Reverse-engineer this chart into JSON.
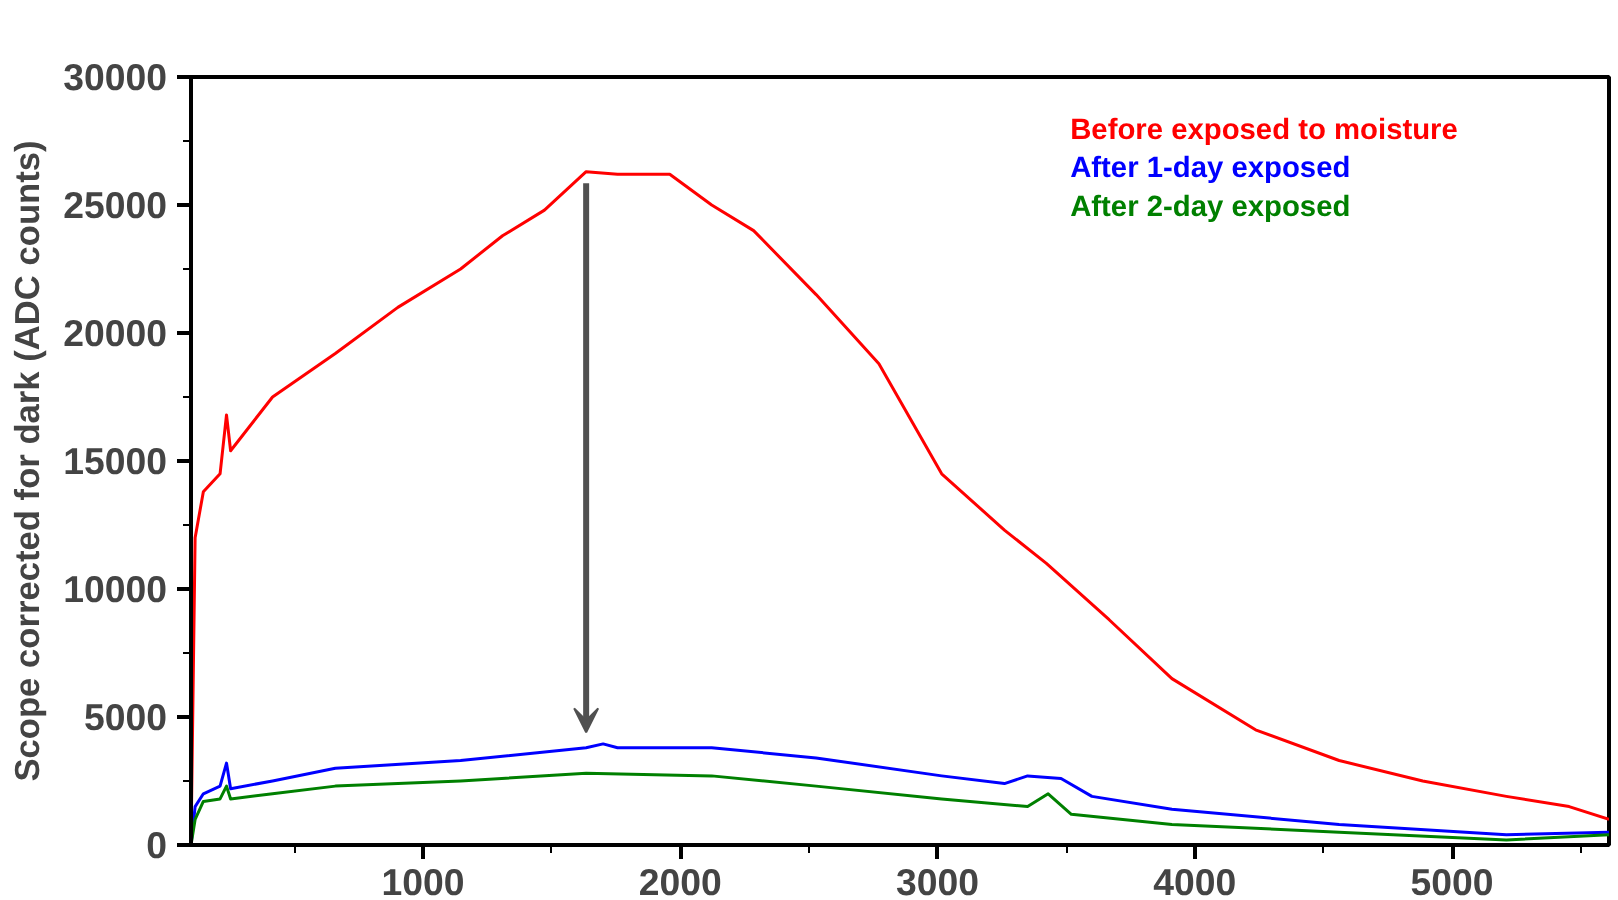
{
  "chart_data": {
    "type": "line",
    "ylabel": "Scope corrected for dark (ADC counts)",
    "xlim": [
      98,
      5610
    ],
    "xticks": [
      1000,
      2000,
      3000,
      4000,
      5000
    ],
    "ylim": [
      0,
      30000
    ],
    "yticks": [
      0,
      5000,
      10000,
      15000,
      20000,
      25000,
      30000
    ],
    "grid": false,
    "legend": "top right",
    "marker": "none",
    "line_style": "solid",
    "series": [
      {
        "name": "Before exposed to moisture",
        "color": "#ff0000",
        "x": [
          98,
          114,
          146,
          211,
          236,
          252,
          415,
          659,
          902,
          1146,
          1309,
          1472,
          1634,
          1756,
          1959,
          2122,
          2285,
          2528,
          2772,
          3016,
          3260,
          3423,
          3667,
          3911,
          4236,
          4561,
          4886,
          5211,
          5455,
          5610
        ],
        "values": [
          0,
          12000,
          13800,
          14500,
          16800,
          15400,
          17500,
          19200,
          21000,
          22500,
          23800,
          24800,
          26300,
          26200,
          26200,
          25000,
          24000,
          21500,
          18800,
          14500,
          12300,
          11000,
          8800,
          6500,
          4500,
          3300,
          2500,
          1900,
          1500,
          1000
        ]
      },
      {
        "name": "After 1-day exposed",
        "color": "#0000ff",
        "x": [
          98,
          114,
          146,
          211,
          236,
          252,
          415,
          659,
          1146,
          1634,
          1700,
          1756,
          2122,
          2528,
          3016,
          3260,
          3350,
          3480,
          3600,
          3911,
          4561,
          5211,
          5610
        ],
        "values": [
          0,
          1500,
          2000,
          2300,
          3200,
          2200,
          2500,
          3000,
          3300,
          3800,
          3950,
          3800,
          3800,
          3400,
          2700,
          2400,
          2700,
          2600,
          1900,
          1400,
          800,
          400,
          500
        ]
      },
      {
        "name": "After 2-day exposed",
        "color": "#008000",
        "x": [
          98,
          114,
          146,
          211,
          236,
          252,
          415,
          659,
          1146,
          1634,
          2122,
          2528,
          3016,
          3350,
          3430,
          3520,
          3911,
          4561,
          5211,
          5610
        ],
        "values": [
          0,
          1000,
          1700,
          1800,
          2300,
          1800,
          2000,
          2300,
          2500,
          2800,
          2700,
          2300,
          1800,
          1500,
          2000,
          1200,
          800,
          500,
          200,
          400
        ]
      }
    ]
  }
}
